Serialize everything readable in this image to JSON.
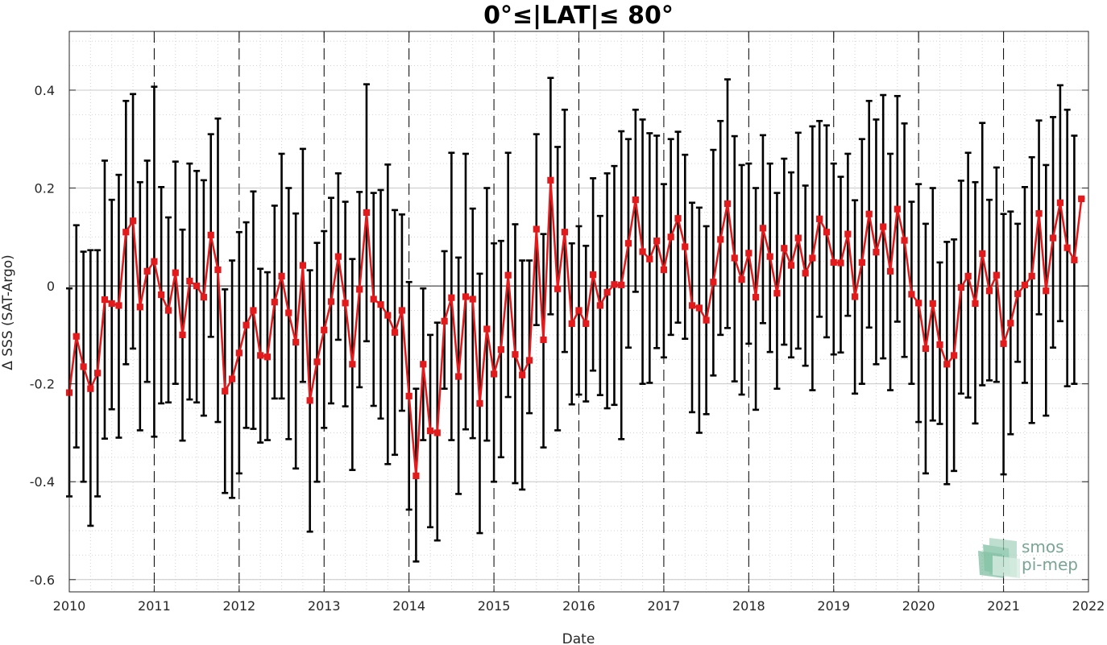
{
  "chart_data": {
    "type": "line",
    "title": "0°≤|LAT|≤ 80°",
    "xlabel": "Date",
    "ylabel": "Δ SSS (SAT-Argo)",
    "xlim": [
      2010,
      2022
    ],
    "ylim": [
      -0.625,
      0.52
    ],
    "x_ticks": [
      "2010",
      "2011",
      "2012",
      "2013",
      "2014",
      "2015",
      "2016",
      "2017",
      "2018",
      "2019",
      "2020",
      "2021",
      "2022"
    ],
    "y_ticks": [
      {
        "value": 0.4,
        "label": "0.4"
      },
      {
        "value": 0.2,
        "label": "0.2"
      },
      {
        "value": 0,
        "label": "0"
      },
      {
        "value": -0.2,
        "label": "-0.2"
      },
      {
        "value": -0.4,
        "label": "-0.4"
      },
      {
        "value": -0.6,
        "label": "-0.6"
      }
    ],
    "grid": true,
    "year_separators": "dashed vertical lines at each year",
    "series": [
      {
        "color": "#e31a1c",
        "marker": "square",
        "error_bar_color": "#000000",
        "x": [
          2010.0,
          2010.083,
          2010.167,
          2010.25,
          2010.333,
          2010.417,
          2010.5,
          2010.583,
          2010.667,
          2010.75,
          2010.833,
          2010.917,
          2011.0,
          2011.083,
          2011.167,
          2011.25,
          2011.333,
          2011.417,
          2011.5,
          2011.583,
          2011.667,
          2011.75,
          2011.833,
          2011.917,
          2012.0,
          2012.083,
          2012.167,
          2012.25,
          2012.333,
          2012.417,
          2012.5,
          2012.583,
          2012.667,
          2012.75,
          2012.833,
          2012.917,
          2013.0,
          2013.083,
          2013.167,
          2013.25,
          2013.333,
          2013.417,
          2013.5,
          2013.583,
          2013.667,
          2013.75,
          2013.833,
          2013.917,
          2014.0,
          2014.083,
          2014.167,
          2014.25,
          2014.333,
          2014.417,
          2014.5,
          2014.583,
          2014.667,
          2014.75,
          2014.833,
          2014.917,
          2015.0,
          2015.083,
          2015.167,
          2015.25,
          2015.333,
          2015.417,
          2015.5,
          2015.583,
          2015.667,
          2015.75,
          2015.833,
          2015.917,
          2016.0,
          2016.083,
          2016.167,
          2016.25,
          2016.333,
          2016.417,
          2016.5,
          2016.583,
          2016.667,
          2016.75,
          2016.833,
          2016.917,
          2017.0,
          2017.083,
          2017.167,
          2017.25,
          2017.333,
          2017.417,
          2017.5,
          2017.583,
          2017.667,
          2017.75,
          2017.833,
          2017.917,
          2018.0,
          2018.083,
          2018.167,
          2018.25,
          2018.333,
          2018.417,
          2018.5,
          2018.583,
          2018.667,
          2018.75,
          2018.833,
          2018.917,
          2019.0,
          2019.083,
          2019.167,
          2019.25,
          2019.333,
          2019.417,
          2019.5,
          2019.583,
          2019.667,
          2019.75,
          2019.833,
          2019.917,
          2020.0,
          2020.083,
          2020.167,
          2020.25,
          2020.333,
          2020.417,
          2020.5,
          2020.583,
          2020.667,
          2020.75,
          2020.833,
          2020.917,
          2021.0,
          2021.083,
          2021.167,
          2021.25,
          2021.333,
          2021.417,
          2021.5,
          2021.583,
          2021.667,
          2021.75,
          2021.833,
          2021.917
        ],
        "y": [
          -0.218,
          -0.103,
          -0.165,
          -0.21,
          -0.178,
          -0.028,
          -0.036,
          -0.04,
          0.11,
          0.133,
          -0.043,
          0.03,
          0.05,
          -0.018,
          -0.05,
          0.027,
          -0.1,
          0.01,
          0.0,
          -0.023,
          0.104,
          0.033,
          -0.215,
          -0.19,
          -0.137,
          -0.08,
          -0.05,
          -0.142,
          -0.145,
          -0.033,
          0.02,
          -0.055,
          -0.115,
          0.042,
          -0.234,
          -0.155,
          -0.09,
          -0.032,
          0.06,
          -0.035,
          -0.16,
          -0.007,
          0.15,
          -0.027,
          -0.038,
          -0.06,
          -0.095,
          -0.05,
          -0.225,
          -0.388,
          -0.16,
          -0.296,
          -0.3,
          -0.072,
          -0.024,
          -0.185,
          -0.022,
          -0.027,
          -0.24,
          -0.088,
          -0.18,
          -0.13,
          0.022,
          -0.14,
          -0.182,
          -0.152,
          0.116,
          -0.11,
          0.216,
          -0.006,
          0.11,
          -0.077,
          -0.05,
          -0.077,
          0.023,
          -0.04,
          -0.013,
          0.003,
          0.002,
          0.087,
          0.176,
          0.07,
          0.055,
          0.092,
          0.033,
          0.1,
          0.138,
          0.08,
          -0.04,
          -0.045,
          -0.07,
          0.008,
          0.095,
          0.168,
          0.057,
          0.013,
          0.067,
          -0.023,
          0.118,
          0.06,
          -0.015,
          0.077,
          0.042,
          0.098,
          0.026,
          0.057,
          0.137,
          0.11,
          0.048,
          0.047,
          0.106,
          -0.022,
          0.048,
          0.147,
          0.069,
          0.121,
          0.03,
          0.157,
          0.093,
          -0.017,
          -0.035,
          -0.128,
          -0.036,
          -0.12,
          -0.16,
          -0.142,
          -0.003,
          0.02,
          -0.036,
          0.066,
          -0.01,
          0.022,
          -0.118,
          -0.076,
          -0.016,
          0.002,
          0.02,
          0.148,
          -0.01,
          0.098,
          0.17,
          0.078,
          0.053,
          0.178
        ],
        "error_low": [
          -0.43,
          -0.33,
          -0.4,
          -0.49,
          -0.43,
          -0.312,
          -0.252,
          -0.31,
          -0.16,
          -0.128,
          -0.295,
          -0.196,
          -0.308,
          -0.24,
          -0.238,
          -0.2,
          -0.316,
          -0.232,
          -0.238,
          -0.265,
          -0.104,
          -0.278,
          -0.423,
          -0.433,
          -0.383,
          -0.29,
          -0.292,
          -0.32,
          -0.315,
          -0.23,
          -0.23,
          -0.313,
          -0.373,
          -0.196,
          -0.502,
          -0.4,
          -0.29,
          -0.24,
          -0.11,
          -0.246,
          -0.376,
          -0.207,
          -0.113,
          -0.245,
          -0.271,
          -0.364,
          -0.345,
          -0.255,
          -0.457,
          -0.563,
          -0.315,
          -0.493,
          -0.52,
          -0.21,
          -0.315,
          -0.425,
          -0.293,
          -0.311,
          -0.505,
          -0.316,
          -0.4,
          -0.35,
          -0.227,
          -0.403,
          -0.416,
          -0.26,
          -0.08,
          -0.33,
          -0.058,
          -0.295,
          -0.135,
          -0.242,
          -0.222,
          -0.236,
          -0.173,
          -0.223,
          -0.25,
          -0.243,
          -0.313,
          -0.126,
          -0.012,
          -0.2,
          -0.198,
          -0.127,
          -0.146,
          -0.1,
          -0.075,
          -0.108,
          -0.258,
          -0.3,
          -0.262,
          -0.183,
          -0.1,
          -0.086,
          -0.195,
          -0.222,
          -0.118,
          -0.253,
          -0.076,
          -0.135,
          -0.21,
          -0.12,
          -0.146,
          -0.128,
          -0.163,
          -0.213,
          -0.063,
          -0.105,
          -0.14,
          -0.136,
          -0.061,
          -0.22,
          -0.2,
          -0.085,
          -0.16,
          -0.148,
          -0.213,
          -0.073,
          -0.145,
          -0.2,
          -0.278,
          -0.383,
          -0.275,
          -0.282,
          -0.405,
          -0.378,
          -0.22,
          -0.228,
          -0.281,
          -0.203,
          -0.193,
          -0.196,
          -0.385,
          -0.303,
          -0.155,
          -0.198,
          -0.28,
          -0.058,
          -0.265,
          -0.126,
          -0.072,
          -0.205,
          -0.2,
          0.179
        ],
        "error_high": [
          -0.005,
          0.124,
          0.07,
          0.073,
          0.073,
          0.256,
          0.176,
          0.227,
          0.378,
          0.392,
          0.212,
          0.256,
          0.407,
          0.202,
          0.14,
          0.254,
          0.115,
          0.25,
          0.235,
          0.216,
          0.31,
          0.342,
          -0.007,
          0.052,
          0.11,
          0.13,
          0.193,
          0.035,
          0.028,
          0.164,
          0.27,
          0.2,
          0.148,
          0.28,
          0.032,
          0.088,
          0.112,
          0.18,
          0.23,
          0.172,
          0.055,
          0.192,
          0.412,
          0.19,
          0.196,
          0.248,
          0.155,
          0.146,
          0.008,
          -0.21,
          -0.005,
          -0.1,
          -0.075,
          0.071,
          0.272,
          0.058,
          0.27,
          0.158,
          0.025,
          0.2,
          0.087,
          0.092,
          0.272,
          0.126,
          0.052,
          0.052,
          0.31,
          0.106,
          0.425,
          0.284,
          0.36,
          0.087,
          0.122,
          0.082,
          0.22,
          0.143,
          0.23,
          0.245,
          0.316,
          0.3,
          0.36,
          0.34,
          0.312,
          0.307,
          0.208,
          0.3,
          0.315,
          0.268,
          0.17,
          0.16,
          0.122,
          0.278,
          0.337,
          0.422,
          0.306,
          0.247,
          0.25,
          0.2,
          0.308,
          0.25,
          0.19,
          0.26,
          0.232,
          0.313,
          0.205,
          0.326,
          0.337,
          0.328,
          0.25,
          0.223,
          0.27,
          0.175,
          0.3,
          0.378,
          0.34,
          0.39,
          0.27,
          0.388,
          0.332,
          0.172,
          0.208,
          0.127,
          0.2,
          0.048,
          0.09,
          0.095,
          0.215,
          0.272,
          0.212,
          0.333,
          0.176,
          0.242,
          0.147,
          0.152,
          0.127,
          0.202,
          0.263,
          0.338,
          0.247,
          0.345,
          0.41,
          0.36,
          0.307,
          0.179
        ]
      }
    ]
  },
  "logo": {
    "line1": "smos",
    "line2": "pi-mep",
    "icon": "smos-pi-mep-logo-icon",
    "color": "#7aa595"
  }
}
